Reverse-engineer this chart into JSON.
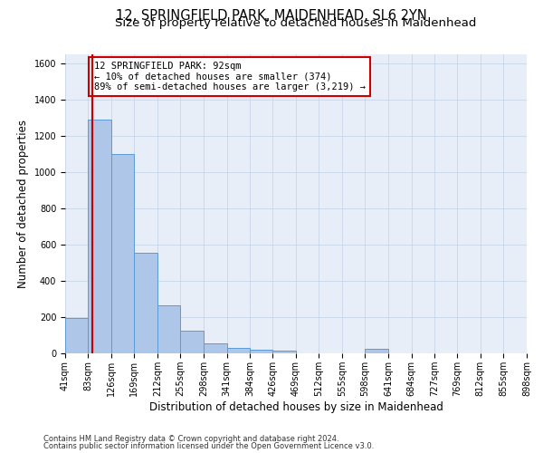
{
  "title": "12, SPRINGFIELD PARK, MAIDENHEAD, SL6 2YN",
  "subtitle": "Size of property relative to detached houses in Maidenhead",
  "xlabel": "Distribution of detached houses by size in Maidenhead",
  "ylabel": "Number of detached properties",
  "footnote1": "Contains HM Land Registry data © Crown copyright and database right 2024.",
  "footnote2": "Contains public sector information licensed under the Open Government Licence v3.0.",
  "annotation_line1": "12 SPRINGFIELD PARK: 92sqm",
  "annotation_line2": "← 10% of detached houses are smaller (374)",
  "annotation_line3": "89% of semi-detached houses are larger (3,219) →",
  "property_sqm": 92,
  "bin_edges": [
    41,
    83,
    126,
    169,
    212,
    255,
    298,
    341,
    384,
    426,
    469,
    512,
    555,
    598,
    641,
    684,
    727,
    769,
    812,
    855,
    898
  ],
  "bar_heights": [
    195,
    1290,
    1100,
    555,
    265,
    125,
    55,
    30,
    22,
    15,
    0,
    0,
    0,
    25,
    0,
    0,
    0,
    0,
    0,
    0
  ],
  "bar_color": "#aec6e8",
  "bar_edge_color": "#5b9bd5",
  "red_line_x": 92,
  "ylim": [
    0,
    1650
  ],
  "yticks": [
    0,
    200,
    400,
    600,
    800,
    1000,
    1200,
    1400,
    1600
  ],
  "xtick_labels": [
    "41sqm",
    "83sqm",
    "126sqm",
    "169sqm",
    "212sqm",
    "255sqm",
    "298sqm",
    "341sqm",
    "384sqm",
    "426sqm",
    "469sqm",
    "512sqm",
    "555sqm",
    "598sqm",
    "641sqm",
    "684sqm",
    "727sqm",
    "769sqm",
    "812sqm",
    "855sqm",
    "898sqm"
  ],
  "grid_color": "#c8d4e8",
  "bg_color": "#e8eef7",
  "annotation_box_color": "#cc0000",
  "title_fontsize": 10.5,
  "subtitle_fontsize": 9.5,
  "axis_label_fontsize": 8.5,
  "tick_fontsize": 7,
  "annotation_fontsize": 7.5,
  "footnote_fontsize": 6
}
